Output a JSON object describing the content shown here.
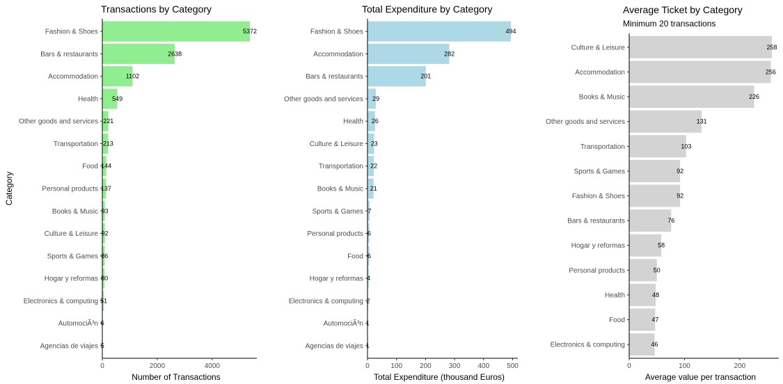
{
  "chart_data": [
    {
      "type": "bar",
      "orientation": "horizontal",
      "title": "Transactions by Category",
      "subtitle": "",
      "xlabel": "Number of Transactions",
      "ylabel": "Category",
      "bar_color": "#90ee90",
      "xlim": [
        0,
        5372
      ],
      "xticks": [
        0,
        2000,
        4000
      ],
      "xtick_labels": [
        "0",
        "2000",
        "4000"
      ],
      "categories": [
        "Fashion & Shoes",
        "Bars & restaurants",
        "Accommodation",
        "Health",
        "Other goods and services",
        "Transportation",
        "Food",
        "Personal products",
        "Books & Music",
        "Culture & Leisure",
        "Sports & Games",
        "Hogar y reformas",
        "Electronics & computing",
        "AutomociÃ³n",
        "Agencias de viajes"
      ],
      "values": [
        5372,
        2638,
        1102,
        549,
        221,
        213,
        144,
        137,
        93,
        92,
        86,
        80,
        51,
        6,
        5
      ],
      "value_labels": [
        "5372",
        "2638",
        "1102",
        "549",
        "221",
        "213",
        "144",
        "137",
        "93",
        "92",
        "86",
        "80",
        "51",
        "6",
        "5"
      ]
    },
    {
      "type": "bar",
      "orientation": "horizontal",
      "title": "Total Expenditure by Category",
      "subtitle": "",
      "xlabel": "Total Expenditure (thousand Euros)",
      "ylabel": "",
      "bar_color": "#add8e6",
      "xlim": [
        0,
        494
      ],
      "xticks": [
        0,
        100,
        200,
        300,
        400,
        500
      ],
      "xtick_labels": [
        "0",
        "100",
        "200",
        "300",
        "400",
        "500"
      ],
      "categories": [
        "Fashion & Shoes",
        "Accommodation",
        "Bars & restaurants",
        "Other goods and services",
        "Health",
        "Culture & Leisure",
        "Transportation",
        "Books & Music",
        "Sports & Games",
        "Personal products",
        "Food",
        "Hogar y reformas",
        "Electronics & computing",
        "AutomociÃ³n",
        "Agencias de viajes"
      ],
      "values": [
        494,
        282,
        201,
        29,
        26,
        23,
        22,
        21,
        7,
        6,
        6,
        4,
        2,
        1,
        1
      ],
      "value_labels": [
        "494",
        "282",
        "201",
        "29",
        "26",
        "23",
        "22",
        "21",
        "7",
        "6",
        "6",
        "4",
        "2",
        "1",
        "1"
      ]
    },
    {
      "type": "bar",
      "orientation": "horizontal",
      "title": "Average Ticket by Category",
      "subtitle": "Minimum 20 transactions",
      "xlabel": "Average value per transaction",
      "ylabel": "",
      "bar_color": "#d3d3d3",
      "xlim": [
        0,
        258
      ],
      "xticks": [
        0,
        100,
        200
      ],
      "xtick_labels": [
        "0",
        "100",
        "200"
      ],
      "categories": [
        "Culture & Leisure",
        "Accommodation",
        "Books & Music",
        "Other goods and services",
        "Transportation",
        "Sports & Games",
        "Fashion & Shoes",
        "Bars & restaurants",
        "Hogar y reformas",
        "Personal products",
        "Health",
        "Food",
        "Electronics & computing"
      ],
      "values": [
        258,
        256,
        226,
        131,
        103,
        92,
        92,
        76,
        58,
        50,
        48,
        47,
        46
      ],
      "value_labels": [
        "258",
        "256",
        "226",
        "131",
        "103",
        "92",
        "92",
        "76",
        "58",
        "50",
        "48",
        "47",
        "46"
      ]
    }
  ]
}
